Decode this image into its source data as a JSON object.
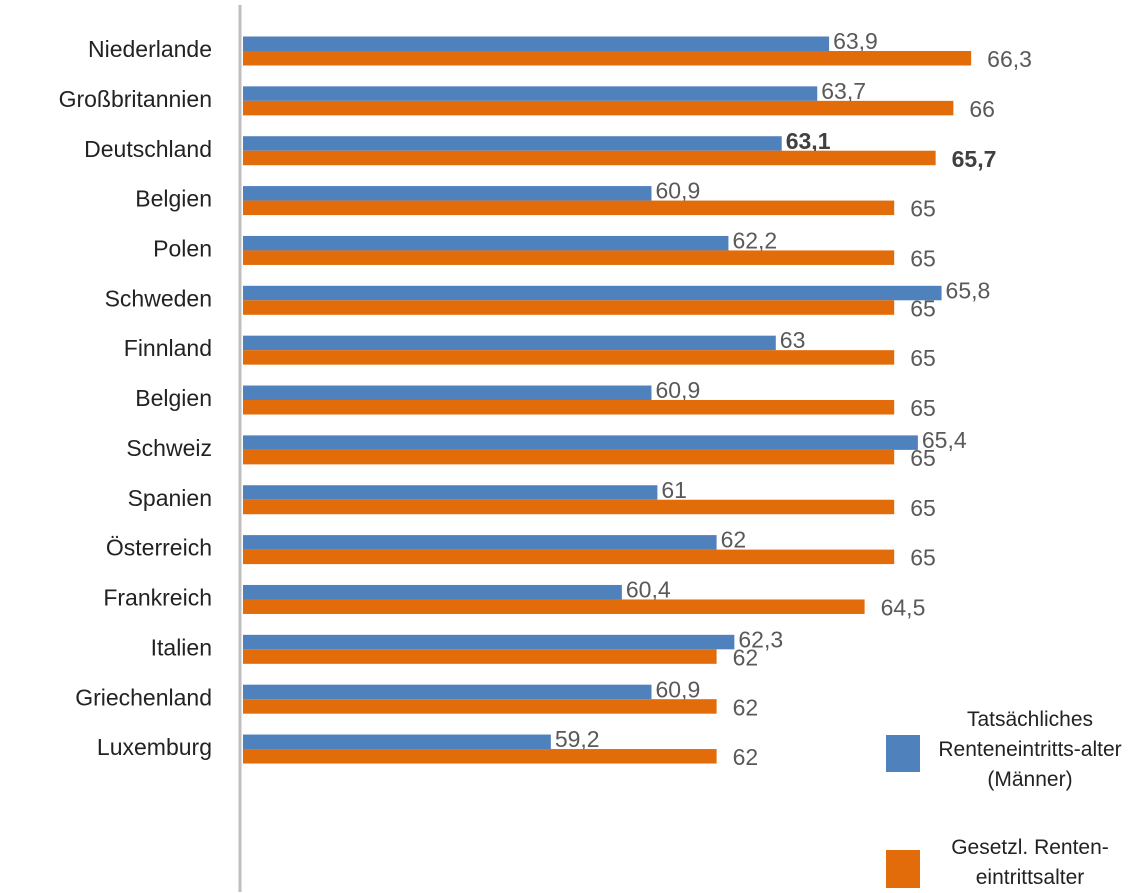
{
  "chart_data": {
    "type": "hbar",
    "categories": [
      "Niederlande",
      "Großbritannien",
      "Deutschland",
      "Belgien",
      "Polen",
      "Schweden",
      "Finnland",
      "Belgien",
      "Schweiz",
      "Spanien",
      "Österreich",
      "Frankreich",
      "Italien",
      "Griechenland",
      "Luxemburg"
    ],
    "series": [
      {
        "name": "Tatsächliches Renteneintritts-alter (Männer)",
        "color": "#4f81bd",
        "values": [
          63.9,
          63.7,
          63.1,
          60.9,
          62.2,
          65.8,
          63,
          60.9,
          65.4,
          61,
          62,
          60.4,
          62.3,
          60.9,
          59.2
        ],
        "value_labels": [
          "63,9",
          "63,7",
          "63,1",
          "60,9",
          "62,2",
          "65,8",
          "63",
          "60,9",
          "65,4",
          "61",
          "62",
          "60,4",
          "62,3",
          "60,9",
          "59,2"
        ]
      },
      {
        "name": "Gesetzl. Renten-eintrittsalter",
        "color": "#e36c0a",
        "values": [
          66.3,
          66,
          65.7,
          65,
          65,
          65,
          65,
          65,
          65,
          65,
          65,
          64.5,
          62,
          62,
          62
        ],
        "value_labels": [
          "66,3",
          "66",
          "65,7",
          "65",
          "65",
          "65",
          "65",
          "65",
          "65",
          "65",
          "65",
          "64,5",
          "62",
          "62",
          "62"
        ]
      }
    ],
    "xlim": [
      54,
      69
    ],
    "bold_index": 2
  }
}
